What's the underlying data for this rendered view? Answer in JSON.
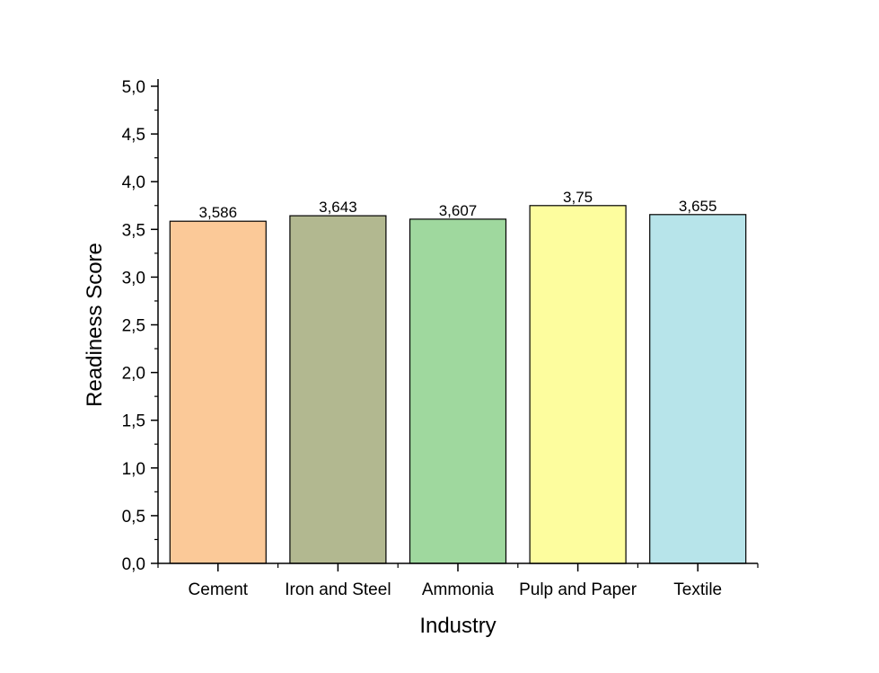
{
  "chart_data": {
    "type": "bar",
    "categories": [
      "Cement",
      "Iron and Steel",
      "Ammonia",
      "Pulp and Paper",
      "Textile"
    ],
    "values": [
      3.586,
      3.643,
      3.607,
      3.75,
      3.655
    ],
    "value_labels": [
      "3,586",
      "3,643",
      "3,607",
      "3,75",
      "3,655"
    ],
    "colors": [
      "#fbc998",
      "#b2b890",
      "#9fd89e",
      "#fdfd9e",
      "#b7e4ea"
    ],
    "xlabel": "Industry",
    "ylabel": "Readiness Score",
    "ylim": [
      0,
      5
    ],
    "yticks": [
      0,
      0.5,
      1,
      1.5,
      2,
      2.5,
      3,
      3.5,
      4,
      4.5,
      5
    ],
    "ytick_labels": [
      "0,0",
      "0,5",
      "1,0",
      "1,5",
      "2,0",
      "2,5",
      "3,0",
      "3,5",
      "4,0",
      "4,5",
      "5,0"
    ],
    "grid": false,
    "legend": false
  }
}
